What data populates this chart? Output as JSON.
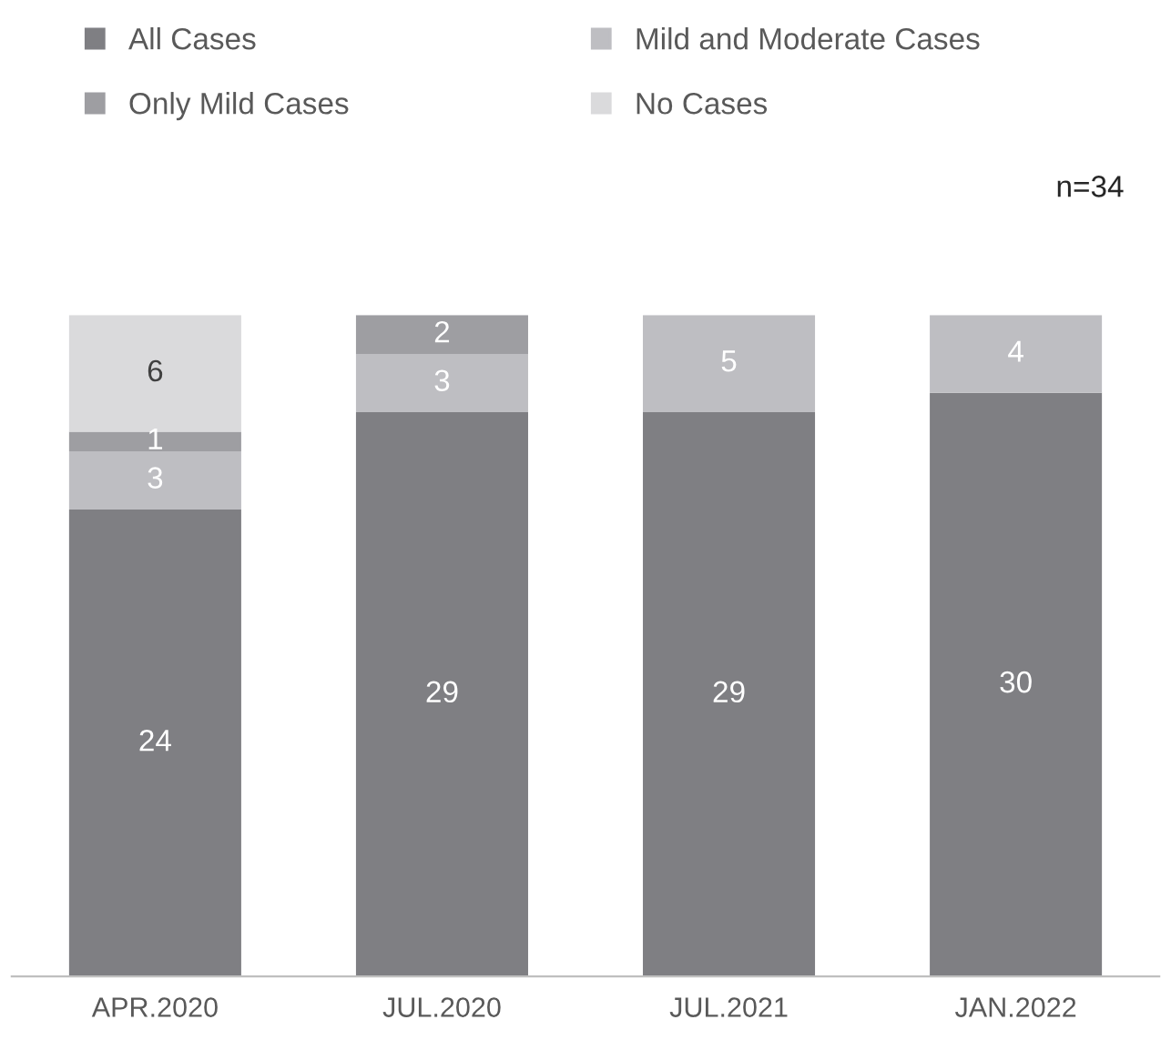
{
  "chart_data": {
    "type": "bar",
    "stacked": true,
    "categories": [
      "APR.2020",
      "JUL.2020",
      "JUL.2021",
      "JAN.2022"
    ],
    "series": [
      {
        "name": "All Cases",
        "color": "#7f7f83",
        "values": [
          24,
          29,
          29,
          30
        ]
      },
      {
        "name": "Mild and Moderate Cases",
        "color": "#bebec2",
        "values": [
          3,
          3,
          5,
          4
        ]
      },
      {
        "name": "Only Mild Cases",
        "color": "#9e9ea2",
        "values": [
          1,
          2,
          null,
          null
        ]
      },
      {
        "name": "No Cases",
        "color": "#dadadc",
        "values": [
          6,
          null,
          null,
          null
        ]
      }
    ],
    "data_labels": true,
    "legend": "top",
    "grid": false,
    "annotations": [
      "n=34"
    ]
  }
}
